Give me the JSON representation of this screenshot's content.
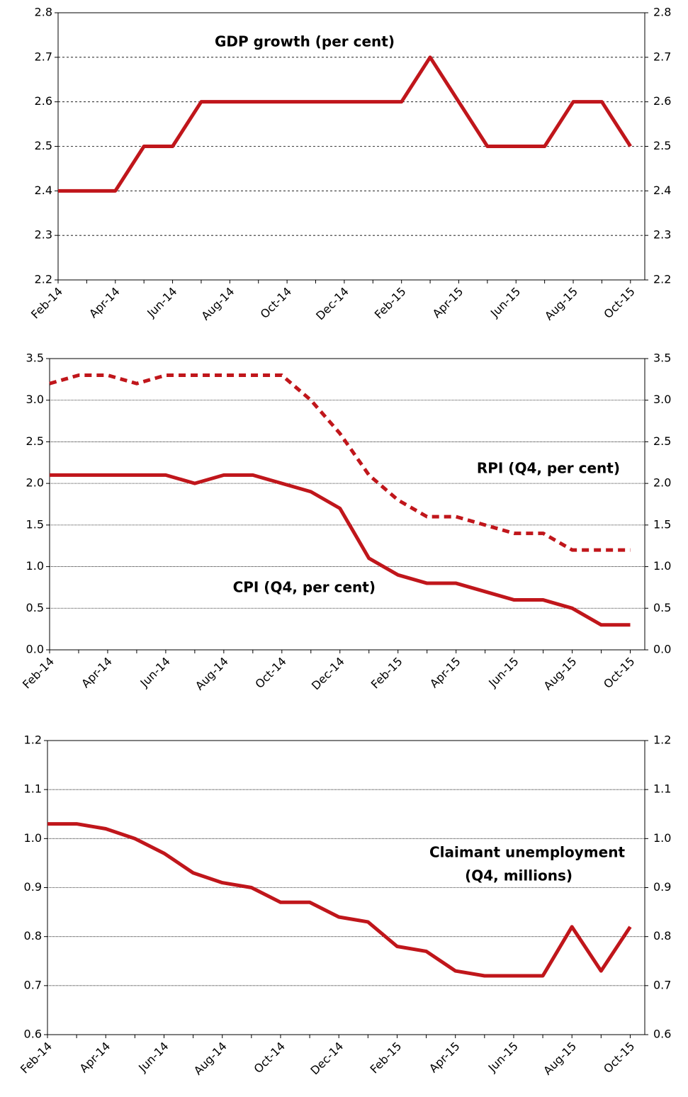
{
  "chart_data": [
    {
      "type": "line",
      "annotation": [
        "GDP growth (per cent)"
      ],
      "categories": [
        "Feb-14",
        null,
        "Apr-14",
        null,
        "Jun-14",
        null,
        "Aug-14",
        null,
        "Oct-14",
        null,
        "Dec-14",
        null,
        "Feb-15",
        null,
        "Apr-15",
        null,
        "Jun-15",
        null,
        "Aug-15",
        null,
        "Oct-15"
      ],
      "series": [
        {
          "color": "#c0161b",
          "line_style": "solid",
          "values": [
            2.4,
            2.4,
            2.4,
            2.5,
            2.5,
            2.6,
            2.6,
            2.6,
            2.6,
            2.6,
            2.6,
            2.6,
            2.6,
            2.7,
            2.6,
            2.5,
            2.5,
            2.5,
            2.6,
            2.6,
            2.5
          ]
        }
      ],
      "ylim": [
        2.2,
        2.8
      ],
      "yticks": [
        2.2,
        2.3,
        2.4,
        2.5,
        2.6,
        2.7,
        2.8
      ],
      "grid": "dashed"
    },
    {
      "type": "line",
      "annotation": [
        "RPI (Q4, per cent)",
        "CPI (Q4, per cent)"
      ],
      "categories": [
        "Feb-14",
        null,
        "Apr-14",
        null,
        "Jun-14",
        null,
        "Aug-14",
        null,
        "Oct-14",
        null,
        "Dec-14",
        null,
        "Feb-15",
        null,
        "Apr-15",
        null,
        "Jun-15",
        null,
        "Aug-15",
        null,
        "Oct-15"
      ],
      "series": [
        {
          "color": "#c0161b",
          "line_style": "dashed",
          "values": [
            3.2,
            3.3,
            3.3,
            3.2,
            3.3,
            3.3,
            3.3,
            3.3,
            3.3,
            3.0,
            2.6,
            2.1,
            1.8,
            1.6,
            1.6,
            1.5,
            1.4,
            1.4,
            1.2,
            1.2,
            1.2
          ]
        },
        {
          "color": "#c0161b",
          "line_style": "solid",
          "values": [
            2.1,
            2.1,
            2.1,
            2.1,
            2.1,
            2.0,
            2.1,
            2.1,
            2.0,
            1.9,
            1.7,
            1.1,
            0.9,
            0.8,
            0.8,
            0.7,
            0.6,
            0.6,
            0.5,
            0.3,
            0.3
          ]
        }
      ],
      "ylim": [
        0,
        3.5
      ],
      "yticks": [
        {
          "value": 0,
          "label": "0.0"
        },
        0.5,
        {
          "value": 1,
          "label": "1.0"
        },
        1.5,
        {
          "value": 2,
          "label": "2.0"
        },
        2.5,
        {
          "value": 3,
          "label": "3.0"
        },
        3.5
      ],
      "grid": "dotted"
    },
    {
      "type": "line",
      "annotation": [
        "Claimant unemployment",
        "(Q4, millions)"
      ],
      "categories": [
        "Feb-14",
        null,
        "Apr-14",
        null,
        "Jun-14",
        null,
        "Aug-14",
        null,
        "Oct-14",
        null,
        "Dec-14",
        null,
        "Feb-15",
        null,
        "Apr-15",
        null,
        "Jun-15",
        null,
        "Aug-15",
        null,
        "Oct-15"
      ],
      "series": [
        {
          "color": "#c0161b",
          "line_style": "solid",
          "values": [
            1.03,
            1.03,
            1.02,
            1.0,
            0.97,
            0.93,
            0.91,
            0.9,
            0.87,
            0.87,
            0.84,
            0.83,
            0.78,
            0.77,
            0.73,
            0.72,
            0.72,
            0.72,
            0.82,
            0.73,
            0.82
          ]
        }
      ],
      "ylim": [
        0.6,
        1.2
      ],
      "yticks": [
        0.6,
        0.7,
        0.8,
        0.9,
        {
          "value": 1,
          "label": "1.0"
        },
        1.1,
        1.2
      ],
      "grid": "dotted"
    }
  ]
}
